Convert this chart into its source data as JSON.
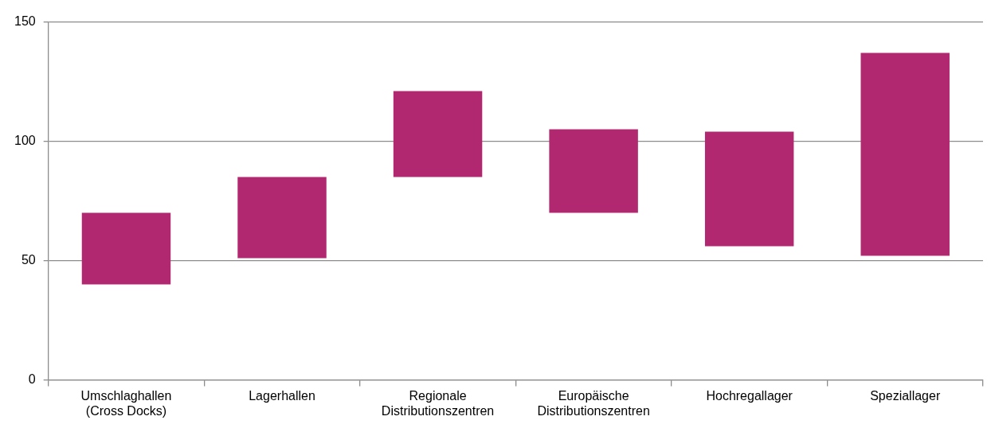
{
  "chart_data": {
    "type": "bar",
    "categories": [
      "Umschlaghallen (Cross Docks)",
      "Lagerhallen",
      "Regionale Distributionszentren",
      "Europäische Distributionszentren",
      "Hochregallager",
      "Speziallager"
    ],
    "base": [
      40,
      51,
      85,
      70,
      56,
      52
    ],
    "values": [
      30,
      34,
      36,
      35,
      48,
      85
    ],
    "color": "#b22870",
    "ylim": [
      0,
      150
    ],
    "yticks": [
      0,
      50,
      100,
      150
    ],
    "grid": "y",
    "legend": false
  }
}
